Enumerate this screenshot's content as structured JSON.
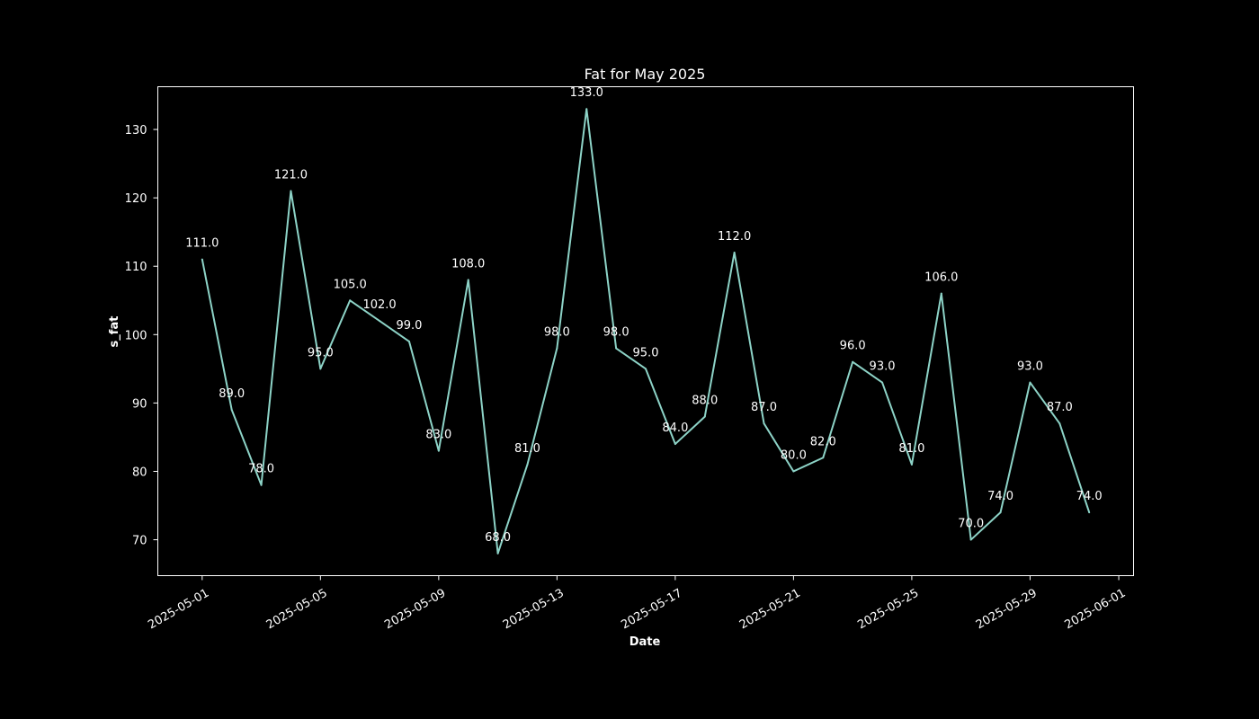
{
  "chart_data": {
    "type": "line",
    "title": "Fat for May 2025",
    "xlabel": "Date",
    "ylabel": "s_fat",
    "x": [
      "2025-05-01",
      "2025-05-02",
      "2025-05-03",
      "2025-05-04",
      "2025-05-05",
      "2025-05-06",
      "2025-05-07",
      "2025-05-08",
      "2025-05-09",
      "2025-05-10",
      "2025-05-11",
      "2025-05-12",
      "2025-05-13",
      "2025-05-14",
      "2025-05-15",
      "2025-05-16",
      "2025-05-17",
      "2025-05-18",
      "2025-05-19",
      "2025-05-20",
      "2025-05-21",
      "2025-05-22",
      "2025-05-23",
      "2025-05-24",
      "2025-05-25",
      "2025-05-26",
      "2025-05-27",
      "2025-05-28",
      "2025-05-29",
      "2025-05-30",
      "2025-05-31"
    ],
    "series": [
      {
        "values": [
          111,
          89,
          78,
          121,
          95,
          105,
          102,
          99,
          83,
          108,
          68,
          81,
          98,
          133,
          98,
          95,
          84,
          88,
          112,
          87,
          80,
          82,
          96,
          93,
          81,
          106,
          70,
          74,
          93,
          87,
          74
        ],
        "data_labels": [
          "111.0",
          "89.0",
          "78.0",
          "121.0",
          "95.0",
          "105.0",
          "102.0",
          "99.0",
          "83.0",
          "108.0",
          "68.0",
          "81.0",
          "98.0",
          "133.0",
          "98.0",
          "95.0",
          "84.0",
          "88.0",
          "112.0",
          "87.0",
          "80.0",
          "82.0",
          "96.0",
          "93.0",
          "81.0",
          "106.0",
          "70.0",
          "74.0",
          "93.0",
          "87.0",
          "74.0"
        ],
        "color": "#8dd3c7"
      }
    ],
    "xlim": [
      "2025-04-29.5",
      "2025-06-01.5"
    ],
    "ylim": [
      64.75,
      136.25
    ],
    "x_ticks": [
      "2025-05-01",
      "2025-05-05",
      "2025-05-09",
      "2025-05-13",
      "2025-05-17",
      "2025-05-21",
      "2025-05-25",
      "2025-05-29",
      "2025-06-01"
    ],
    "y_ticks": [
      "70",
      "80",
      "90",
      "100",
      "110",
      "120",
      "130"
    ],
    "grid": false,
    "legend": false
  },
  "colors": {
    "background": "#000000",
    "axes": "#ffffff",
    "line": "#8dd3c7"
  }
}
